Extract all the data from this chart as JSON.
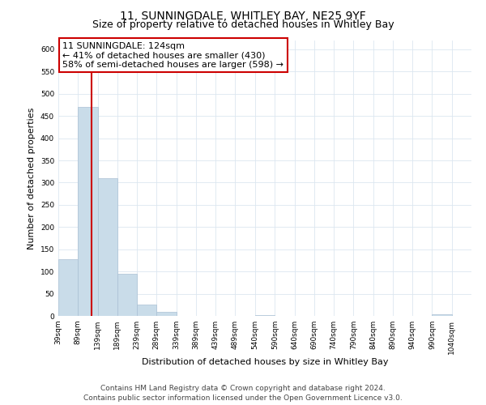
{
  "title": "11, SUNNINGDALE, WHITLEY BAY, NE25 9YF",
  "subtitle": "Size of property relative to detached houses in Whitley Bay",
  "xlabel": "Distribution of detached houses by size in Whitley Bay",
  "ylabel": "Number of detached properties",
  "bar_lefts": [
    39,
    89,
    139,
    189,
    239,
    289,
    339,
    389,
    439,
    489,
    540,
    590,
    640,
    690,
    740,
    790,
    840,
    890,
    940,
    990
  ],
  "bar_widths": [
    50,
    50,
    50,
    50,
    50,
    50,
    50,
    50,
    50,
    51,
    50,
    50,
    50,
    50,
    50,
    50,
    50,
    50,
    50,
    50
  ],
  "bar_heights": [
    128,
    470,
    310,
    95,
    26,
    10,
    0,
    0,
    0,
    0,
    2,
    0,
    0,
    0,
    0,
    0,
    0,
    0,
    0,
    3
  ],
  "bar_color": "#c9dce9",
  "bar_edgecolor": "#aac0d4",
  "property_line_x": 124,
  "property_line_color": "#cc0000",
  "annotation_title": "11 SUNNINGDALE: 124sqm",
  "annotation_line1": "← 41% of detached houses are smaller (430)",
  "annotation_line2": "58% of semi-detached houses are larger (598) →",
  "annotation_box_facecolor": "#ffffff",
  "annotation_box_edgecolor": "#cc0000",
  "xlim_left": 39,
  "xlim_right": 1090,
  "ylim": [
    0,
    620
  ],
  "yticks": [
    0,
    50,
    100,
    150,
    200,
    250,
    300,
    350,
    400,
    450,
    500,
    550,
    600
  ],
  "xtick_positions": [
    39,
    89,
    139,
    189,
    239,
    289,
    339,
    389,
    439,
    489,
    540,
    590,
    640,
    690,
    740,
    790,
    840,
    890,
    940,
    990,
    1040
  ],
  "tick_labels": [
    "39sqm",
    "89sqm",
    "139sqm",
    "189sqm",
    "239sqm",
    "289sqm",
    "339sqm",
    "389sqm",
    "439sqm",
    "489sqm",
    "540sqm",
    "590sqm",
    "640sqm",
    "690sqm",
    "740sqm",
    "790sqm",
    "840sqm",
    "890sqm",
    "940sqm",
    "990sqm",
    "1040sqm"
  ],
  "footer1": "Contains HM Land Registry data © Crown copyright and database right 2024.",
  "footer2": "Contains public sector information licensed under the Open Government Licence v3.0.",
  "bg_color": "#ffffff",
  "grid_color": "#dce6f0",
  "title_fontsize": 10,
  "subtitle_fontsize": 9,
  "xlabel_fontsize": 8,
  "ylabel_fontsize": 8,
  "tick_fontsize": 6.5,
  "annotation_fontsize": 8,
  "footer_fontsize": 6.5
}
